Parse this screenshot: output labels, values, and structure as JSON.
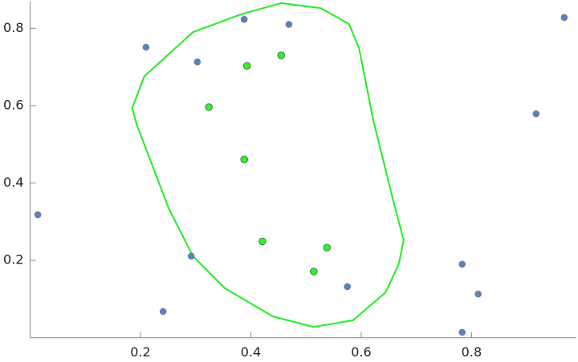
{
  "chart_data": {
    "type": "scatter",
    "xlim": [
      0,
      0.99
    ],
    "ylim": [
      0,
      0.87
    ],
    "xticks": [
      0.2,
      0.4,
      0.6,
      0.8
    ],
    "yticks": [
      0.2,
      0.4,
      0.6,
      0.8
    ],
    "series": [
      {
        "color": "#5e81b5",
        "x": [
          0.014,
          0.21,
          0.241,
          0.303,
          0.292,
          0.388,
          0.469,
          0.575,
          0.783,
          0.812,
          0.783,
          0.917,
          0.968
        ],
        "values": [
          0.318,
          0.751,
          0.068,
          0.713,
          0.211,
          0.823,
          0.81,
          0.132,
          0.19,
          0.113,
          0.014,
          0.579,
          0.828
        ]
      },
      {
        "color": "#33ee33",
        "x": [
          0.393,
          0.455,
          0.324,
          0.388,
          0.421,
          0.538,
          0.514
        ],
        "values": [
          0.703,
          0.73,
          0.596,
          0.461,
          0.249,
          0.233,
          0.171
        ]
      }
    ],
    "boundary": {
      "color": "#22ee22",
      "x": [
        0.185,
        0.207,
        0.295,
        0.382,
        0.455,
        0.527,
        0.578,
        0.596,
        0.622,
        0.658,
        0.677,
        0.668,
        0.644,
        0.585,
        0.513,
        0.44,
        0.353,
        0.295,
        0.251,
        0.193
      ],
      "values": [
        0.594,
        0.676,
        0.79,
        0.836,
        0.865,
        0.852,
        0.811,
        0.749,
        0.562,
        0.355,
        0.252,
        0.19,
        0.117,
        0.045,
        0.028,
        0.055,
        0.128,
        0.211,
        0.335,
        0.552
      ]
    }
  }
}
